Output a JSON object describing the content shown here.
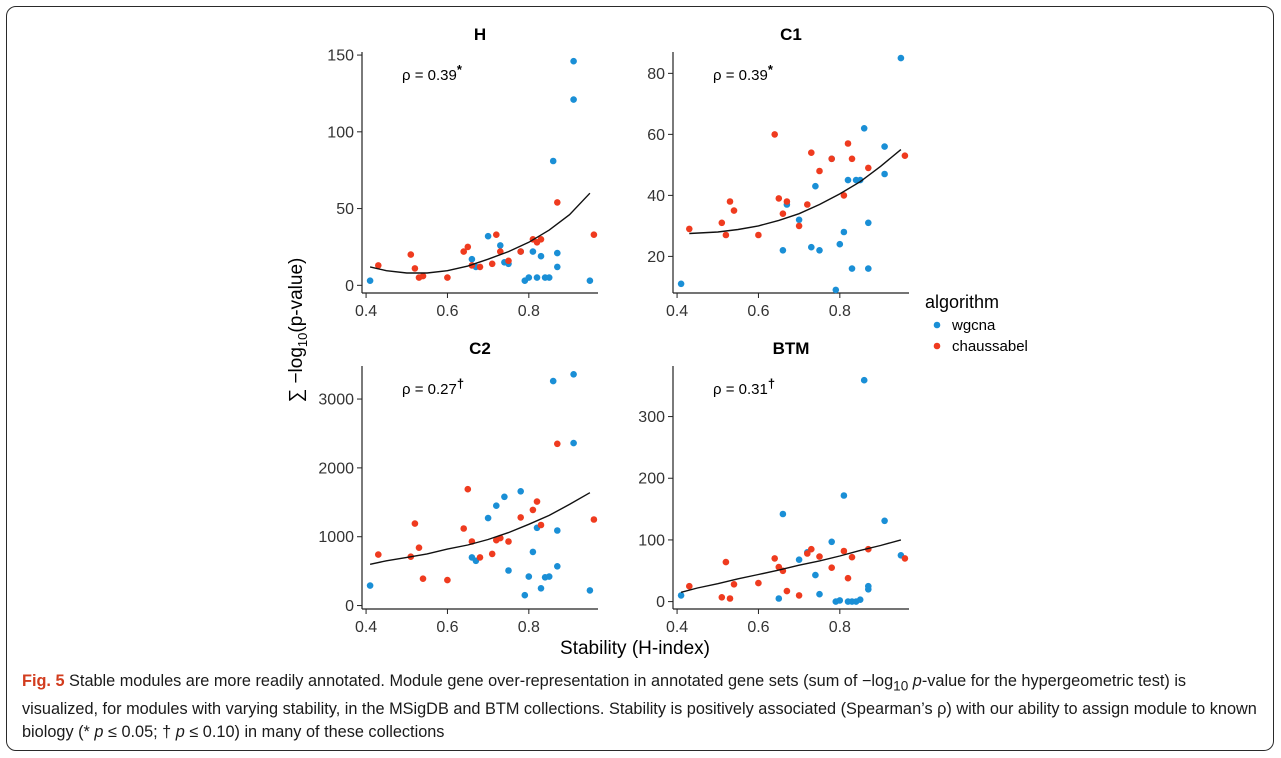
{
  "chart_data": {
    "type": "scatter",
    "xlabel": "Stability (H-index)",
    "ylabel_prefix": "∑ −log",
    "ylabel_sub": "10",
    "ylabel_suffix": "(p-value)",
    "legend": {
      "title": "algorithm",
      "placement": "right",
      "entries": [
        {
          "name": "wgcna",
          "color": "#1a8fd6"
        },
        {
          "name": "chaussabel",
          "color": "#ef3b1f"
        }
      ]
    },
    "panels": [
      {
        "title": "H",
        "rho_text": "ρ = 0.39",
        "rho_mark": "*",
        "xlim": [
          0.39,
          0.97
        ],
        "ylim": [
          -5,
          152
        ],
        "xticks": [
          0.4,
          0.6,
          0.8
        ],
        "xtick_labels": [
          "0.4",
          "0.6",
          "0.8"
        ],
        "yticks": [
          0,
          50,
          100,
          150
        ],
        "ytick_labels": [
          "0",
          "50",
          "100",
          "150"
        ],
        "fit": {
          "x": [
            0.41,
            0.45,
            0.5,
            0.55,
            0.6,
            0.65,
            0.7,
            0.75,
            0.8,
            0.85,
            0.9,
            0.95
          ],
          "y": [
            12,
            9.5,
            8,
            8,
            9.5,
            12.5,
            17,
            22,
            28,
            36,
            46,
            60
          ]
        },
        "series": [
          {
            "name": "wgcna",
            "x": [
              0.41,
              0.66,
              0.67,
              0.7,
              0.73,
              0.74,
              0.75,
              0.78,
              0.79,
              0.8,
              0.81,
              0.82,
              0.83,
              0.84,
              0.85,
              0.86,
              0.87,
              0.87,
              0.91,
              0.91,
              0.95
            ],
            "y": [
              3,
              17,
              12,
              32,
              26,
              15,
              14,
              22,
              3,
              5,
              22,
              5,
              19,
              5,
              5,
              81,
              12,
              21,
              146,
              121,
              3
            ]
          },
          {
            "name": "chaussabel",
            "x": [
              0.43,
              0.51,
              0.52,
              0.53,
              0.54,
              0.6,
              0.64,
              0.65,
              0.66,
              0.68,
              0.71,
              0.72,
              0.73,
              0.75,
              0.78,
              0.81,
              0.82,
              0.83,
              0.87,
              0.96
            ],
            "y": [
              13,
              20,
              11,
              5,
              6,
              5,
              22,
              25,
              13,
              12,
              14,
              33,
              22,
              16,
              22,
              30,
              28,
              30,
              54,
              33
            ]
          }
        ]
      },
      {
        "title": "C1",
        "rho_text": "ρ = 0.39",
        "rho_mark": "*",
        "xlim": [
          0.39,
          0.97
        ],
        "ylim": [
          8,
          87
        ],
        "xticks": [
          0.4,
          0.6,
          0.8
        ],
        "xtick_labels": [
          "0.4",
          "0.6",
          "0.8"
        ],
        "yticks": [
          20,
          40,
          60,
          80
        ],
        "ytick_labels": [
          "20",
          "40",
          "60",
          "80"
        ],
        "fit": {
          "x": [
            0.43,
            0.5,
            0.55,
            0.6,
            0.65,
            0.7,
            0.75,
            0.8,
            0.85,
            0.9,
            0.95
          ],
          "y": [
            27.5,
            28,
            28.8,
            30,
            31.8,
            34,
            37,
            40.5,
            44.5,
            49.5,
            55
          ]
        },
        "series": [
          {
            "name": "wgcna",
            "x": [
              0.41,
              0.66,
              0.67,
              0.7,
              0.73,
              0.74,
              0.75,
              0.78,
              0.79,
              0.8,
              0.81,
              0.82,
              0.83,
              0.84,
              0.85,
              0.86,
              0.87,
              0.87,
              0.91,
              0.91,
              0.95
            ],
            "y": [
              11,
              22,
              37,
              32,
              23,
              43,
              22,
              52,
              9,
              24,
              28,
              45,
              16,
              45,
              45,
              62,
              31,
              16,
              56,
              47,
              85
            ]
          },
          {
            "name": "chaussabel",
            "x": [
              0.43,
              0.51,
              0.52,
              0.53,
              0.54,
              0.6,
              0.64,
              0.65,
              0.66,
              0.67,
              0.7,
              0.72,
              0.73,
              0.75,
              0.78,
              0.81,
              0.82,
              0.83,
              0.87,
              0.96
            ],
            "y": [
              29,
              31,
              27,
              38,
              35,
              27,
              60,
              39,
              34,
              38,
              30,
              37,
              54,
              48,
              52,
              40,
              57,
              52,
              49,
              53
            ]
          }
        ]
      },
      {
        "title": "C2",
        "rho_text": "ρ = 0.27",
        "rho_mark": "†",
        "xlim": [
          0.39,
          0.97
        ],
        "ylim": [
          -50,
          3480
        ],
        "xticks": [
          0.4,
          0.6,
          0.8
        ],
        "xtick_labels": [
          "0.4",
          "0.6",
          "0.8"
        ],
        "yticks": [
          0,
          1000,
          2000,
          3000
        ],
        "ytick_labels": [
          "0",
          "1000",
          "2000",
          "3000"
        ],
        "fit": {
          "x": [
            0.41,
            0.45,
            0.5,
            0.55,
            0.6,
            0.65,
            0.7,
            0.75,
            0.8,
            0.85,
            0.9,
            0.95
          ],
          "y": [
            600,
            650,
            700,
            750,
            820,
            880,
            960,
            1060,
            1180,
            1310,
            1470,
            1640
          ]
        },
        "series": [
          {
            "name": "wgcna",
            "x": [
              0.41,
              0.66,
              0.67,
              0.7,
              0.72,
              0.74,
              0.75,
              0.78,
              0.79,
              0.8,
              0.81,
              0.82,
              0.83,
              0.84,
              0.85,
              0.86,
              0.87,
              0.87,
              0.91,
              0.91,
              0.95
            ],
            "y": [
              290,
              700,
              650,
              1270,
              1450,
              1580,
              510,
              1660,
              150,
              420,
              780,
              1130,
              250,
              410,
              420,
              3260,
              570,
              1090,
              3360,
              2360,
              220
            ]
          },
          {
            "name": "chaussabel",
            "x": [
              0.43,
              0.51,
              0.52,
              0.53,
              0.54,
              0.6,
              0.64,
              0.65,
              0.66,
              0.68,
              0.71,
              0.72,
              0.73,
              0.75,
              0.78,
              0.81,
              0.82,
              0.83,
              0.87,
              0.96
            ],
            "y": [
              740,
              710,
              1190,
              840,
              390,
              370,
              1120,
              1690,
              930,
              700,
              750,
              950,
              980,
              930,
              1280,
              1390,
              1510,
              1170,
              2350,
              1250
            ]
          }
        ]
      },
      {
        "title": "BTM",
        "rho_text": "ρ = 0.31",
        "rho_mark": "†",
        "xlim": [
          0.39,
          0.97
        ],
        "ylim": [
          -12,
          382
        ],
        "xticks": [
          0.4,
          0.6,
          0.8
        ],
        "xtick_labels": [
          "0.4",
          "0.6",
          "0.8"
        ],
        "yticks": [
          0,
          100,
          200,
          300
        ],
        "ytick_labels": [
          "0",
          "100",
          "200",
          "300"
        ],
        "fit": {
          "x": [
            0.41,
            0.45,
            0.5,
            0.55,
            0.6,
            0.65,
            0.7,
            0.75,
            0.8,
            0.85,
            0.9,
            0.95
          ],
          "y": [
            15,
            22,
            29,
            37,
            44,
            51,
            59,
            66,
            74,
            83,
            91,
            100
          ]
        },
        "series": [
          {
            "name": "wgcna",
            "x": [
              0.41,
              0.65,
              0.66,
              0.7,
              0.72,
              0.74,
              0.75,
              0.78,
              0.79,
              0.8,
              0.81,
              0.82,
              0.83,
              0.84,
              0.85,
              0.86,
              0.87,
              0.87,
              0.91,
              0.95
            ],
            "y": [
              10,
              5,
              142,
              68,
              80,
              43,
              12,
              97,
              0,
              2,
              172,
              0,
              0,
              0,
              3,
              359,
              20,
              25,
              131,
              75
            ]
          },
          {
            "name": "chaussabel",
            "x": [
              0.43,
              0.51,
              0.52,
              0.53,
              0.54,
              0.6,
              0.64,
              0.65,
              0.66,
              0.67,
              0.7,
              0.72,
              0.73,
              0.75,
              0.78,
              0.81,
              0.82,
              0.83,
              0.87,
              0.96
            ],
            "y": [
              25,
              7,
              64,
              5,
              28,
              30,
              70,
              56,
              50,
              17,
              10,
              78,
              85,
              73,
              55,
              82,
              38,
              72,
              85,
              70
            ]
          }
        ]
      }
    ]
  },
  "caption": {
    "label": "Fig. 5",
    "text_1": " Stable modules are more readily annotated. Module gene over-representation in annotated gene sets (sum of −log",
    "sub": "10",
    "text_2": " ",
    "italic_1": "p",
    "text_3": "-value for the hypergeometric test) is visualized, for modules with varying stability, in the MSigDB and BTM collections. Stability is positively associated (Spearman’s ρ) with our ability to assign module to known biology (* ",
    "italic_2": "p",
    "text_4": " ≤ 0.05; † ",
    "italic_3": "p",
    "text_5": " ≤ 0.10) in many of these collections"
  }
}
